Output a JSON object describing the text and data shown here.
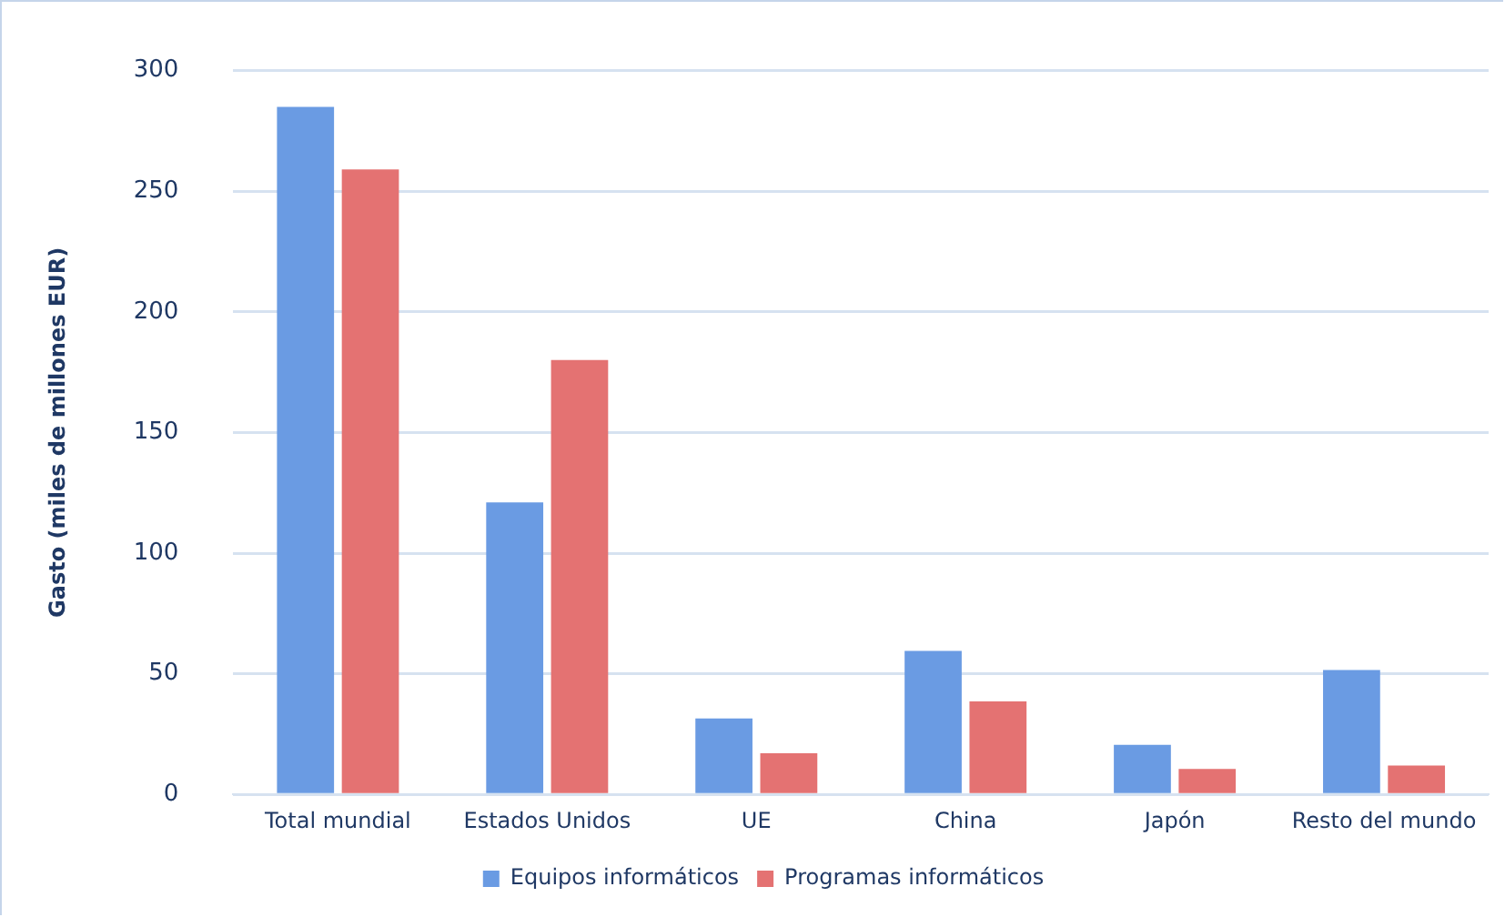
{
  "chart_data": {
    "type": "bar",
    "ylabel": "Gasto (miles de millones EUR)",
    "categories": [
      "Total mundial",
      "Estados Unidos",
      "UE",
      "China",
      "Japón",
      "Resto del mundo"
    ],
    "series": [
      {
        "name": "Equipos informáticos",
        "color": "#6a9be3",
        "values": [
          285,
          121,
          31.5,
          59.5,
          20.5,
          51.5
        ]
      },
      {
        "name": "Programas informáticos",
        "color": "#e47272",
        "values": [
          259,
          180,
          17,
          38.5,
          10.5,
          12
        ]
      }
    ],
    "ylim": [
      0,
      300
    ],
    "yticks": [
      0,
      50,
      100,
      150,
      200,
      250,
      300
    ],
    "grid": "y",
    "legend": "bottom"
  }
}
